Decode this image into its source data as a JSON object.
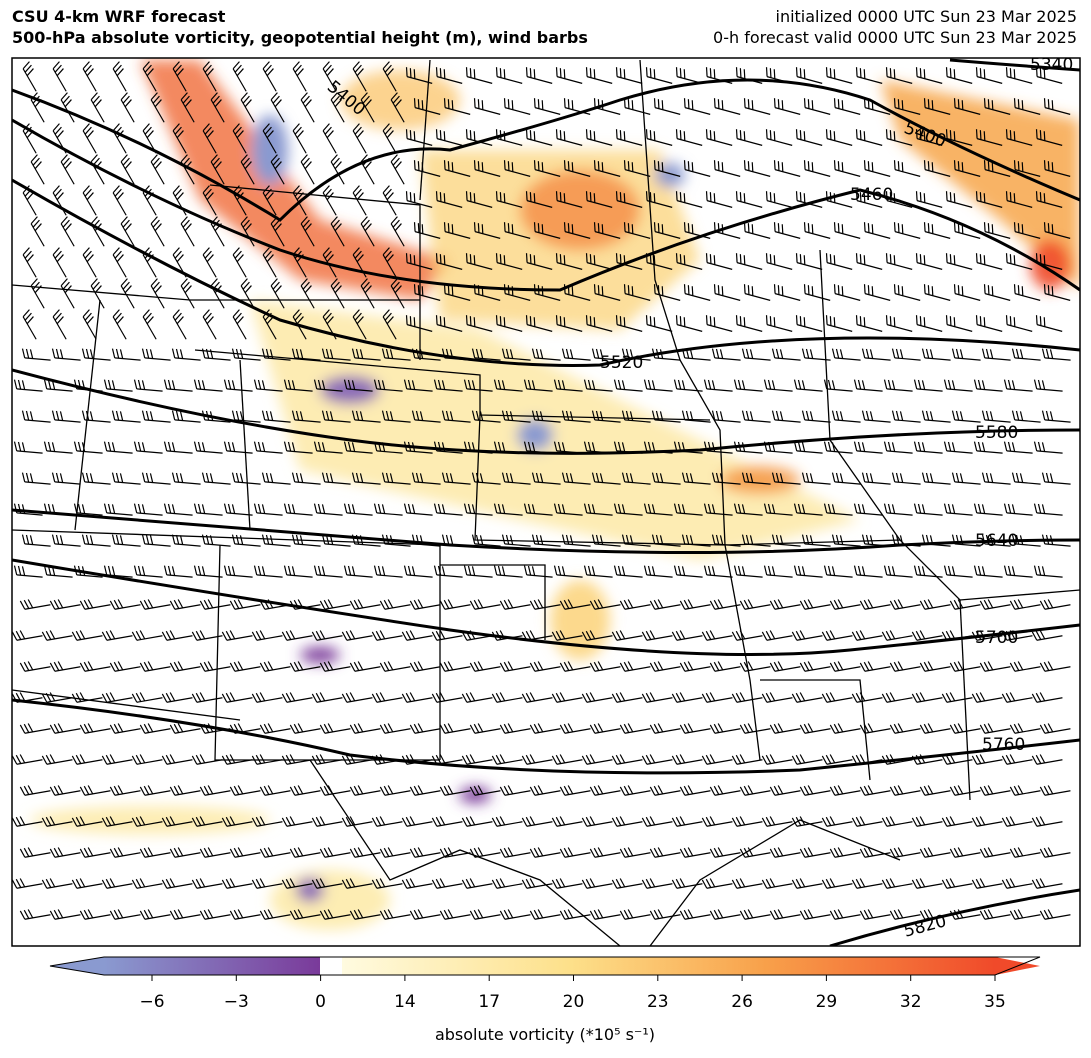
{
  "header": {
    "title": "CSU 4-km WRF forecast",
    "subtitle": "500-hPa absolute vorticity, geopotential height (m), wind barbs",
    "init": "initialized 0000 UTC Sun 23 Mar 2025",
    "valid": "0-h forecast valid 0000 UTC Sun 23 Mar 2025"
  },
  "contours": [
    "5340",
    "5400",
    "5400",
    "5460",
    "5520",
    "5580",
    "5640",
    "5700",
    "5760",
    "5820"
  ],
  "colorbar": {
    "ticks": [
      "−6",
      "−3",
      "0",
      "14",
      "17",
      "20",
      "23",
      "26",
      "29",
      "32",
      "35"
    ],
    "label": "absolute vorticity (*10⁵ s⁻¹)"
  }
}
